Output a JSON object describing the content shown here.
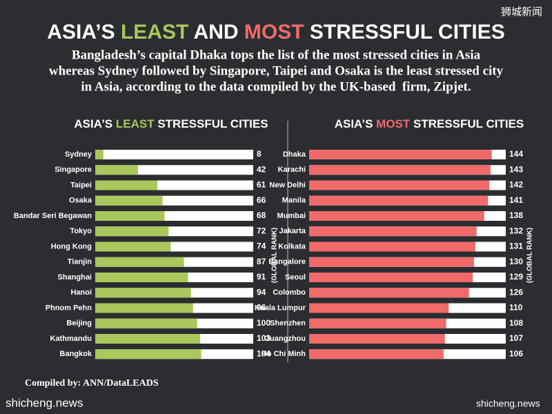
{
  "header": {
    "title_parts": [
      "ASIA’S ",
      "LEAST",
      " AND ",
      "MOST",
      " STRESSFUL CITIES"
    ],
    "subtitle_lines": [
      "Bangladesh’s capital Dhaka tops the list of the most stressed cities in Asia",
      "whereas Sydney followed by Singapore, Taipei and Osaka is the least stressed city",
      "in Asia, according to the data compiled by the UK-based  firm, Zipjet."
    ],
    "brand": "狮城新闻"
  },
  "chart_data": [
    {
      "type": "bar",
      "title_parts": [
        "ASIA’S ",
        "LEAST",
        " STRESSFUL CITIES"
      ],
      "value_axis_label": "(GLOBAL RANK)",
      "color": "#a9c75b",
      "categories": [
        "Sydney",
        "Singapore",
        "Taipei",
        "Osaka",
        "Bandar Seri Begawan",
        "Tokyo",
        "Hong Kong",
        "Tianjin",
        "Shanghai",
        "Hanoi",
        "Phnom Pehn",
        "Beijing",
        "Kathmandu",
        "Bangkok"
      ],
      "values": [
        8,
        42,
        61,
        66,
        68,
        72,
        74,
        87,
        91,
        94,
        96,
        100,
        103,
        104
      ],
      "xlim": [
        0,
        155
      ]
    },
    {
      "type": "bar",
      "title_parts": [
        "ASIA’S ",
        "MOST",
        " STRESSFUL CITIES"
      ],
      "value_axis_label": "(GLOBAL RANK)",
      "color": "#f06a6a",
      "categories": [
        "Dhaka",
        "Karachi",
        "New Delhi",
        "Manila",
        "Mumbai",
        "Jakarta",
        "Kolkata",
        "Bangalore",
        "Seoul",
        "Colombo",
        "Kuala Lumpur",
        "Shenzhen",
        "Guangzhou",
        "Ho Chi Minh"
      ],
      "values": [
        144,
        143,
        142,
        141,
        138,
        132,
        131,
        130,
        129,
        126,
        110,
        108,
        107,
        106
      ],
      "xlim": [
        0,
        155
      ]
    }
  ],
  "footer": {
    "source": "Compiled by: ANN/DataLEADS",
    "watermark_left": "shicheng.news",
    "watermark_right": "shicheng.news"
  }
}
